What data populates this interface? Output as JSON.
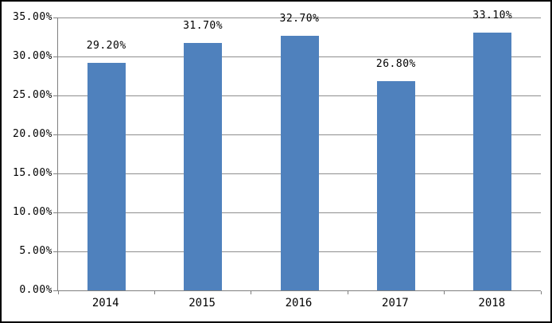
{
  "chart_data": {
    "type": "bar",
    "title": "",
    "xlabel": "",
    "ylabel": "",
    "categories": [
      "2014",
      "2015",
      "2016",
      "2017",
      "2018"
    ],
    "values": [
      29.2,
      31.7,
      32.7,
      26.8,
      33.1
    ],
    "value_labels": [
      "29.20%",
      "31.70%",
      "32.70%",
      "26.80%",
      "33.10%"
    ],
    "ylim": [
      0,
      35
    ],
    "ytick_step": 5,
    "yticks": [
      {
        "value": 35,
        "label": "35.00%"
      },
      {
        "value": 30,
        "label": "30.00%"
      },
      {
        "value": 25,
        "label": "25.00%"
      },
      {
        "value": 20,
        "label": "20.00%"
      },
      {
        "value": 15,
        "label": "15.00%"
      },
      {
        "value": 10,
        "label": "10.00%"
      },
      {
        "value": 5,
        "label": "5.00%"
      },
      {
        "value": 0,
        "label": "0.00%"
      }
    ],
    "grid": true,
    "legend": false
  },
  "colors": {
    "bar": "#4F81BD",
    "gridline": "#8E8E8E",
    "axis": "#7F7F7F",
    "text": "#000000",
    "background": "#FFFFFF",
    "border": "#000000"
  }
}
